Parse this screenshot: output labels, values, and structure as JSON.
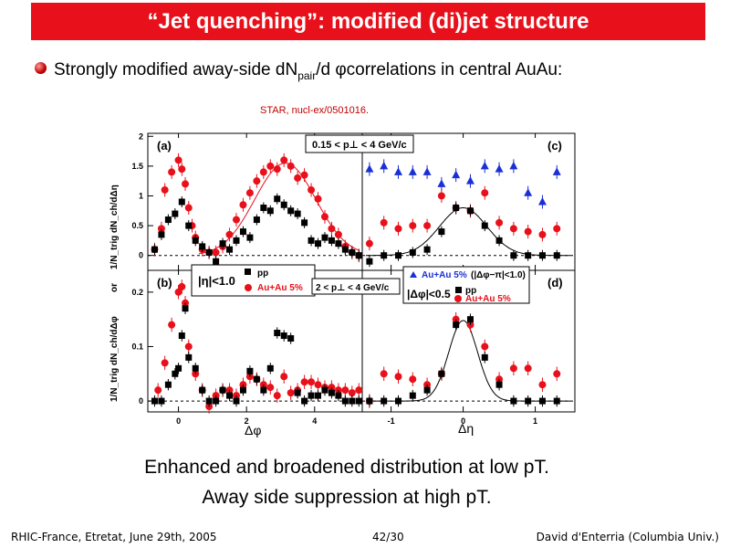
{
  "slide": {
    "title": "“Jet quenching”: modified (di)jet structure",
    "bullet": {
      "pre": "Strongly modified away-side dN",
      "sub": "pair",
      "post": "/d φcorrelations in central AuAu:"
    },
    "citation": "STAR, nucl-ex/0501016.",
    "caption_line1": "Enhanced and broadened distribution at low pT.",
    "caption_line2": "Away side suppression at high pT.",
    "footer_left": "RHIC-France, Etretat, June 29th, 2005",
    "footer_center": "42/30",
    "footer_right": "David d'Enterria (Columbia Univ.)"
  },
  "figure": {
    "ylabel_top": "1/N_trig dN_ch/dΔη",
    "ylabel_or": "or",
    "ylabel_bottom": "1/N_trig dN_ch/dΔφ",
    "xlabel_left": "Δφ",
    "xlabel_right": "Δη",
    "box_pt_low": "0.15 < p⊥ < 4 GeV/c",
    "box_pt_high": "2 < p⊥ < 4 GeV/c",
    "box_eta": "|η|<1.0",
    "box_dphi": "|Δφ|<0.5",
    "legend_pp": "pp",
    "legend_auau": "Au+Au 5%",
    "legend_auau_blue": "Au+Au 5%",
    "legend_auau_blue_cut": "(|Δφ−π|<1.0)",
    "colors": {
      "pp": "#000000",
      "auau": "#e8101a",
      "auau_blue": "#1a2fd6",
      "fit_red": "#e8101a",
      "fit_black": "#000000"
    }
  },
  "chart_data": [
    {
      "panel": "(a)",
      "type": "scatter",
      "xlabel": "Δφ",
      "ylabel": "1/N_trig dN_ch/dΔη",
      "xlim": [
        -0.9,
        5.4
      ],
      "ylim": [
        -0.25,
        2.05
      ],
      "xticks": [
        0,
        2,
        4
      ],
      "yticks": [
        0,
        0.5,
        1,
        1.5,
        2
      ],
      "series": [
        {
          "name": "Au+Au 5%",
          "color": "#e8101a",
          "x": [
            -0.7,
            -0.5,
            -0.4,
            -0.2,
            0.0,
            0.1,
            0.2,
            0.3,
            0.4,
            0.5,
            0.7,
            0.9,
            1.1,
            1.3,
            1.5,
            1.7,
            1.9,
            2.1,
            2.3,
            2.5,
            2.7,
            2.9,
            3.1,
            3.3,
            3.5,
            3.7,
            3.9,
            4.1,
            4.3,
            4.5,
            4.7,
            4.9,
            5.1,
            5.3
          ],
          "y": [
            0.1,
            0.45,
            1.1,
            1.4,
            1.6,
            1.45,
            1.2,
            0.8,
            0.5,
            0.3,
            0.1,
            0.05,
            0.05,
            0.15,
            0.35,
            0.6,
            0.85,
            1.05,
            1.25,
            1.4,
            1.5,
            1.45,
            1.6,
            1.5,
            1.3,
            1.35,
            1.1,
            0.95,
            0.65,
            0.45,
            0.35,
            0.15,
            0.05,
            0.0
          ]
        },
        {
          "name": "pp",
          "color": "#000000",
          "x": [
            -0.7,
            -0.5,
            -0.3,
            -0.1,
            0.1,
            0.3,
            0.5,
            0.7,
            0.9,
            1.1,
            1.3,
            1.5,
            1.7,
            1.9,
            2.1,
            2.3,
            2.5,
            2.7,
            2.9,
            3.1,
            3.3,
            3.5,
            3.7,
            3.9,
            4.1,
            4.3,
            4.5,
            4.7,
            4.9,
            5.1,
            5.3
          ],
          "y": [
            0.1,
            0.35,
            0.6,
            0.7,
            0.9,
            0.5,
            0.25,
            0.15,
            0.05,
            -0.1,
            0.2,
            0.1,
            0.25,
            0.4,
            0.3,
            0.6,
            0.8,
            0.75,
            0.95,
            0.85,
            0.75,
            0.7,
            0.55,
            0.25,
            0.2,
            0.3,
            0.25,
            0.2,
            0.1,
            0.05,
            0.0
          ]
        }
      ]
    },
    {
      "panel": "(b)",
      "type": "scatter",
      "xlabel": "Δφ",
      "ylabel": "1/N_trig dN_ch/dΔφ",
      "xlim": [
        -0.9,
        5.4
      ],
      "ylim": [
        -0.02,
        0.24
      ],
      "xticks": [
        0,
        2,
        4
      ],
      "yticks": [
        0,
        0.1,
        0.2
      ],
      "series": [
        {
          "name": "Au+Au 5%",
          "color": "#e8101a",
          "x": [
            -0.6,
            -0.4,
            -0.2,
            0.0,
            0.1,
            0.2,
            0.3,
            0.5,
            0.7,
            0.9,
            1.1,
            1.3,
            1.5,
            1.7,
            1.9,
            2.1,
            2.3,
            2.5,
            2.7,
            2.9,
            3.1,
            3.3,
            3.5,
            3.7,
            3.9,
            4.1,
            4.3,
            4.5,
            4.7,
            4.9,
            5.1,
            5.3
          ],
          "y": [
            0.02,
            0.07,
            0.14,
            0.2,
            0.21,
            0.18,
            0.1,
            0.05,
            0.02,
            -0.01,
            0.01,
            0.02,
            0.02,
            0.01,
            0.03,
            0.045,
            0.04,
            0.03,
            0.025,
            0.01,
            0.045,
            0.015,
            0.02,
            0.035,
            0.035,
            0.03,
            0.025,
            0.025,
            0.02,
            0.02,
            0.015,
            0.02
          ]
        },
        {
          "name": "pp",
          "color": "#000000",
          "x": [
            -0.7,
            -0.5,
            -0.3,
            -0.1,
            0.0,
            0.1,
            0.2,
            0.3,
            0.5,
            0.7,
            0.9,
            1.1,
            1.3,
            1.5,
            1.7,
            1.9,
            2.1,
            2.3,
            2.5,
            2.7,
            2.9,
            3.1,
            3.3,
            3.5,
            3.7,
            3.9,
            4.1,
            4.3,
            4.5,
            4.7,
            4.9,
            5.1,
            5.3
          ],
          "y": [
            0.0,
            0.0,
            0.03,
            0.05,
            0.06,
            0.12,
            0.17,
            0.08,
            0.06,
            0.02,
            0.0,
            0.0,
            0.02,
            0.01,
            0.0,
            0.02,
            0.055,
            0.04,
            0.02,
            0.06,
            0.125,
            0.12,
            0.115,
            0.015,
            0.0,
            0.01,
            0.01,
            0.02,
            0.015,
            0.01,
            0.0,
            0.0,
            0.0
          ]
        }
      ]
    },
    {
      "panel": "(c)",
      "type": "scatter",
      "xlabel": "Δη",
      "ylabel": "1/N_trig dN_ch/dΔη",
      "xlim": [
        -1.4,
        1.55
      ],
      "ylim": [
        -0.25,
        2.05
      ],
      "xticks": [
        -1,
        0,
        1
      ],
      "yticks": [],
      "series": [
        {
          "name": "Au+Au 5% (|Δφ−π|<1.0)",
          "color": "#1a2fd6",
          "x": [
            -1.3,
            -1.1,
            -0.9,
            -0.7,
            -0.5,
            -0.3,
            -0.1,
            0.1,
            0.3,
            0.5,
            0.7,
            0.9,
            1.1,
            1.3
          ],
          "y": [
            1.45,
            1.5,
            1.4,
            1.4,
            1.4,
            1.2,
            1.35,
            1.25,
            1.5,
            1.45,
            1.5,
            1.05,
            0.9,
            1.4
          ]
        },
        {
          "name": "Au+Au 5%",
          "color": "#e8101a",
          "x": [
            -1.3,
            -1.1,
            -0.9,
            -0.7,
            -0.5,
            -0.3,
            -0.1,
            0.1,
            0.3,
            0.5,
            0.7,
            0.9,
            1.1,
            1.3
          ],
          "y": [
            0.2,
            0.55,
            0.45,
            0.5,
            0.5,
            1.0,
            0.8,
            0.75,
            1.05,
            0.55,
            0.45,
            0.4,
            0.35,
            0.45
          ]
        },
        {
          "name": "pp",
          "color": "#000000",
          "x": [
            -1.3,
            -1.1,
            -0.9,
            -0.7,
            -0.5,
            -0.3,
            -0.1,
            0.1,
            0.3,
            0.5,
            0.7,
            0.9,
            1.1,
            1.3
          ],
          "y": [
            -0.1,
            0.0,
            0.0,
            0.05,
            0.1,
            0.4,
            0.8,
            0.75,
            0.5,
            0.25,
            0.0,
            0.0,
            0.0,
            0.0
          ]
        }
      ]
    },
    {
      "panel": "(d)",
      "type": "scatter",
      "xlabel": "Δη",
      "ylabel": "1/N_trig dN_ch/dΔφ",
      "xlim": [
        -1.4,
        1.55
      ],
      "ylim": [
        -0.02,
        0.24
      ],
      "xticks": [
        -1,
        0,
        1
      ],
      "yticks": [],
      "series": [
        {
          "name": "Au+Au 5%",
          "color": "#e8101a",
          "x": [
            -1.3,
            -1.1,
            -0.9,
            -0.7,
            -0.5,
            -0.3,
            -0.1,
            0.1,
            0.3,
            0.5,
            0.7,
            0.9,
            1.1,
            1.3
          ],
          "y": [
            0.0,
            0.05,
            0.045,
            0.04,
            0.03,
            0.05,
            0.15,
            0.14,
            0.1,
            0.04,
            0.06,
            0.06,
            0.03,
            0.05
          ]
        },
        {
          "name": "pp",
          "color": "#000000",
          "x": [
            -1.3,
            -1.1,
            -0.9,
            -0.7,
            -0.5,
            -0.3,
            -0.1,
            0.1,
            0.3,
            0.5,
            0.7,
            0.9,
            1.1,
            1.3
          ],
          "y": [
            0.0,
            0.0,
            0.0,
            0.01,
            0.02,
            0.05,
            0.14,
            0.15,
            0.08,
            0.03,
            0.0,
            0.0,
            0.0,
            0.0
          ]
        }
      ]
    }
  ]
}
